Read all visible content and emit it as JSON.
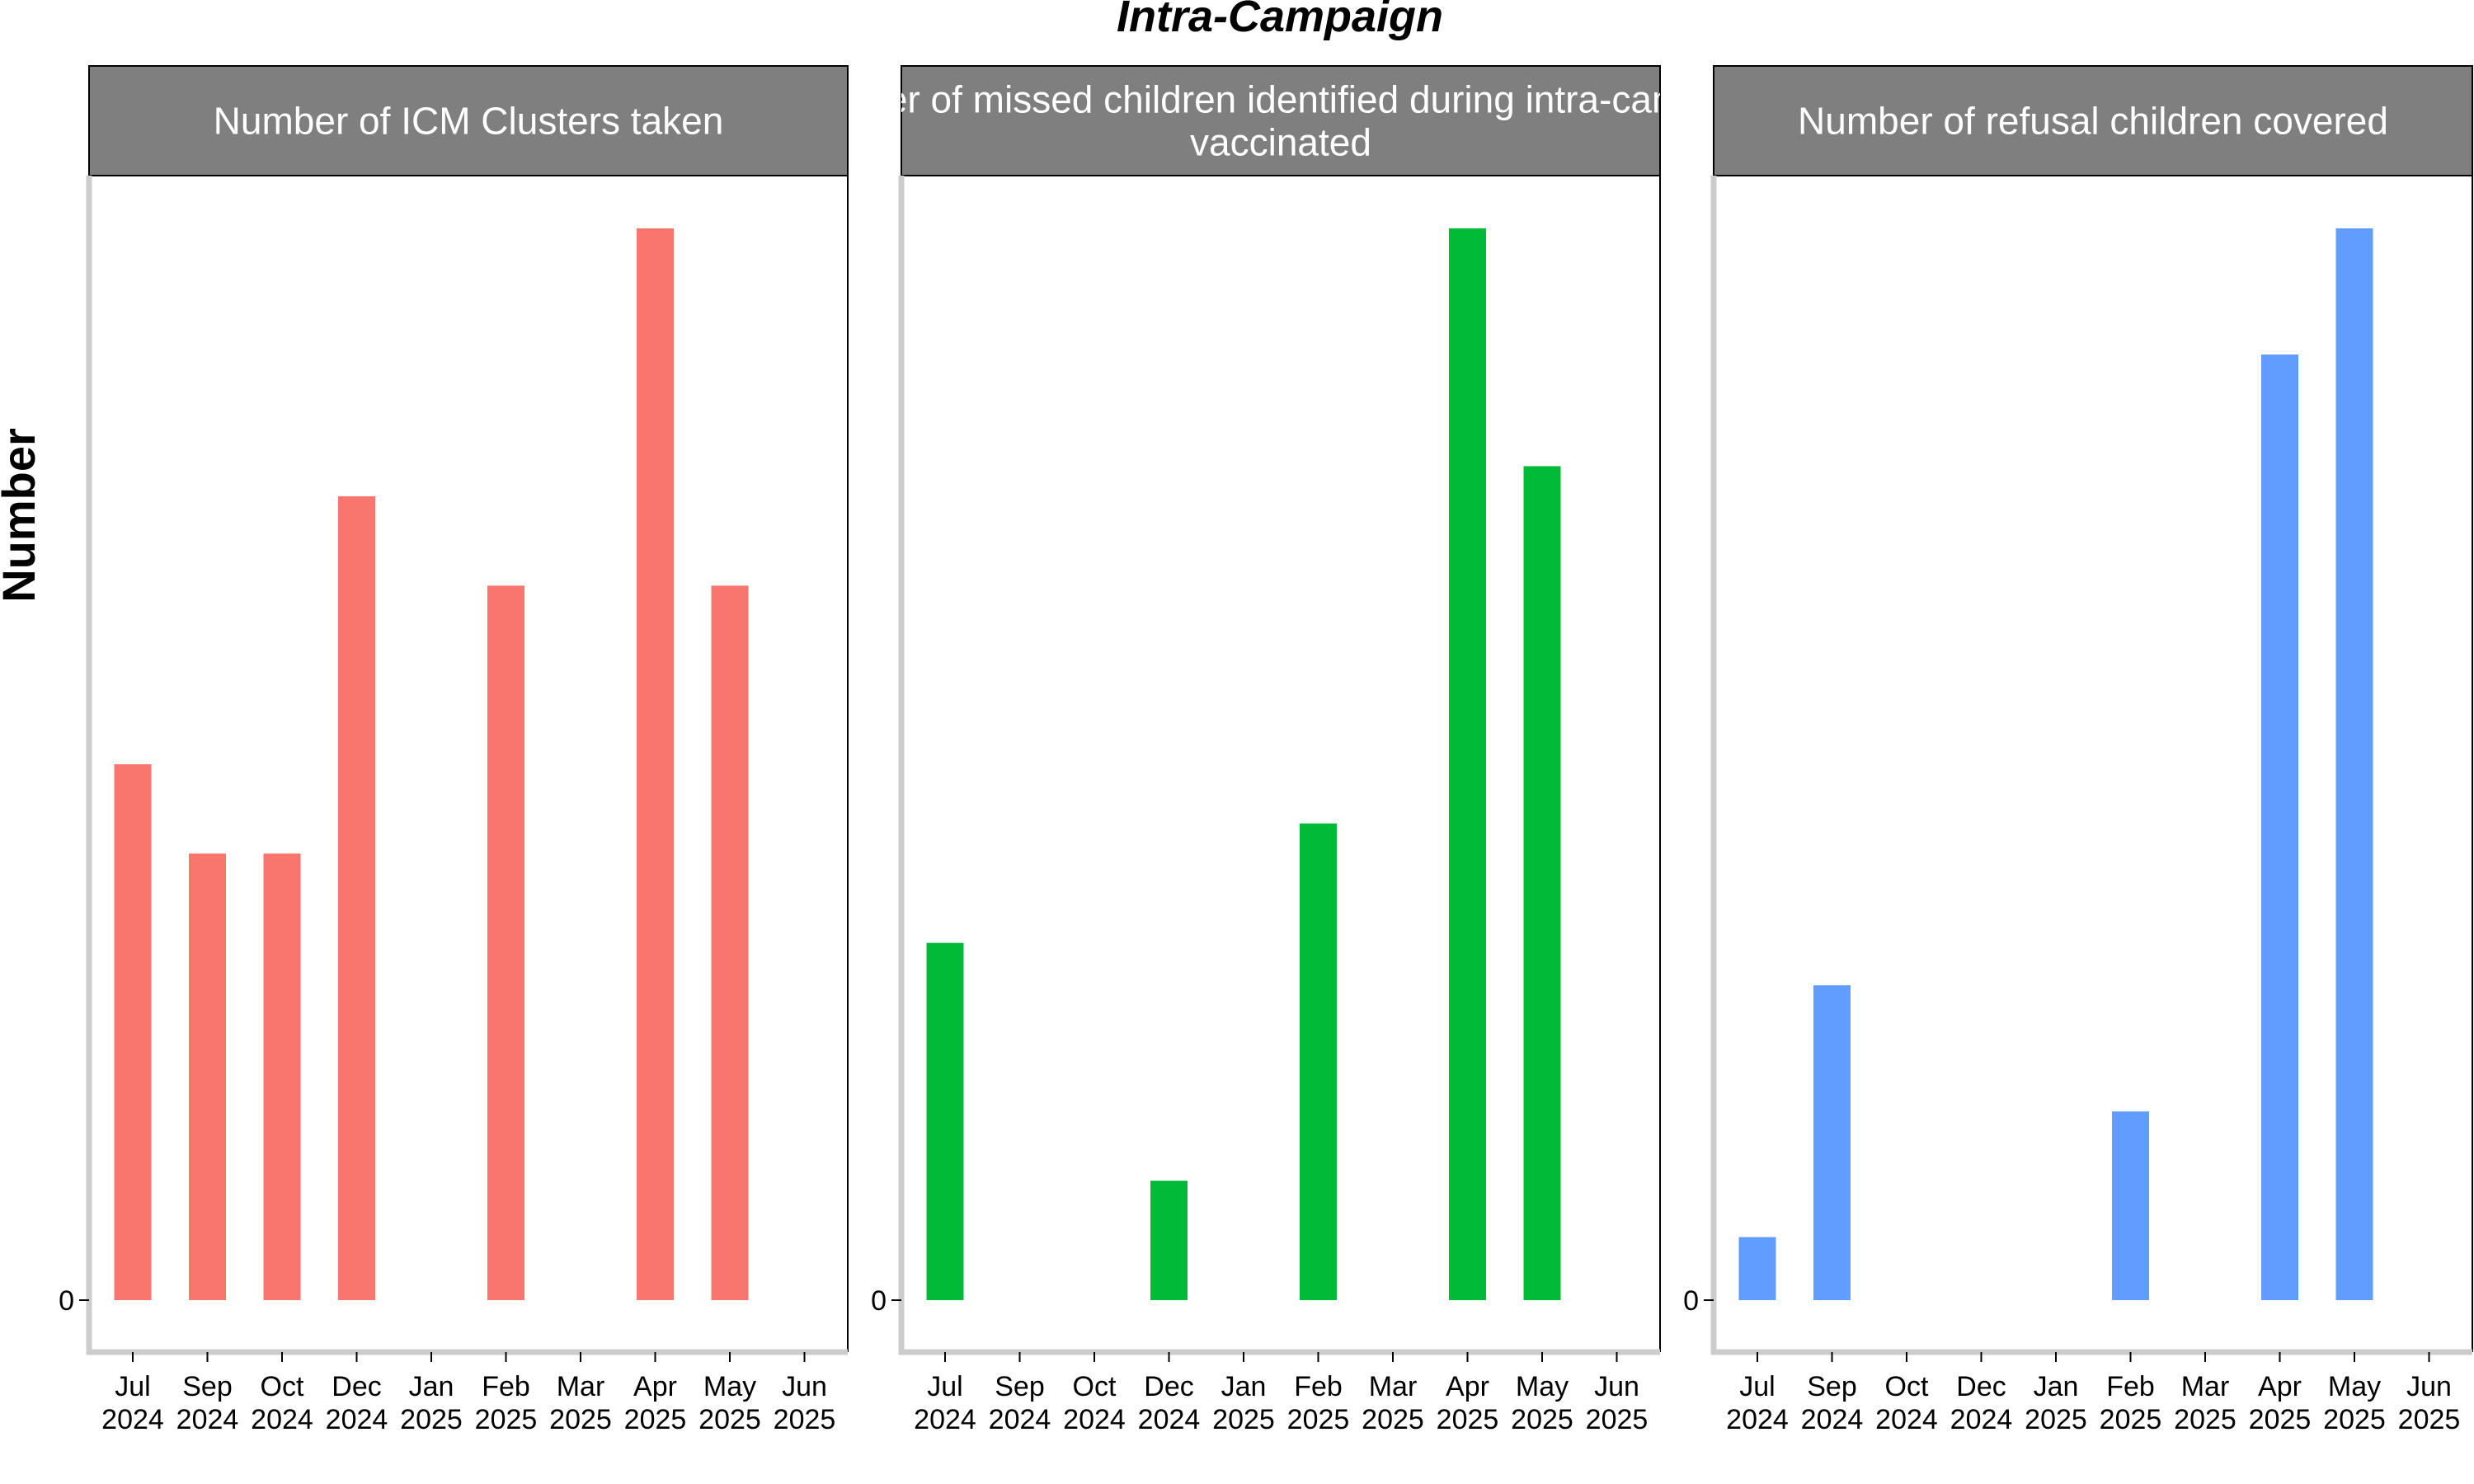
{
  "chart_data": {
    "type": "bar",
    "title": "Intra-Campaign",
    "xlabel": "",
    "ylabel": "Number",
    "y_tick_labels": [
      "0"
    ],
    "x_tick_labels": [
      {
        "month": "Jul",
        "year": "2024"
      },
      {
        "month": "Sep",
        "year": "2024"
      },
      {
        "month": "Oct",
        "year": "2024"
      },
      {
        "month": "Dec",
        "year": "2024"
      },
      {
        "month": "Jan",
        "year": "2025"
      },
      {
        "month": "Feb",
        "year": "2025"
      },
      {
        "month": "Mar",
        "year": "2025"
      },
      {
        "month": "Apr",
        "year": "2025"
      },
      {
        "month": "May",
        "year": "2025"
      },
      {
        "month": "Jun",
        "year": "2025"
      }
    ],
    "grid": false,
    "legend": "none",
    "facets": [
      {
        "strip_lines": [
          "Number of ICM Clusters taken"
        ],
        "color": "#F8766D",
        "ylim": [
          -0.045,
          0.96
        ],
        "bars": [
          {
            "x": "Jul 2024",
            "value": 0.48
          },
          {
            "x": "Sep 2024",
            "value": 0.4
          },
          {
            "x": "Oct 2024",
            "value": 0.4
          },
          {
            "x": "Dec 2024",
            "value": 0.72
          },
          {
            "x": "Feb 2025",
            "value": 0.64
          },
          {
            "x": "Apr 2025",
            "value": 0.96
          },
          {
            "x": "May 2025",
            "value": 0.64
          }
        ]
      },
      {
        "strip_lines": [
          "Number of missed children identified during intra-campaign",
          "vaccinated"
        ],
        "color": "#00BA38",
        "ylim": [
          -0.045,
          0.96
        ],
        "bars": [
          {
            "x": "Jul 2024",
            "value": 0.32
          },
          {
            "x": "Dec 2024",
            "value": 0.107
          },
          {
            "x": "Feb 2025",
            "value": 0.427
          },
          {
            "x": "Apr 2025",
            "value": 0.96
          },
          {
            "x": "May 2025",
            "value": 0.747
          }
        ]
      },
      {
        "strip_lines": [
          "Number of refusal children covered"
        ],
        "color": "#619CFF",
        "ylim": [
          -0.045,
          0.96
        ],
        "bars": [
          {
            "x": "Jul 2024",
            "value": 0.0565
          },
          {
            "x": "Sep 2024",
            "value": 0.282
          },
          {
            "x": "Feb 2025",
            "value": 0.169
          },
          {
            "x": "Apr 2025",
            "value": 0.847
          },
          {
            "x": "May 2025",
            "value": 0.96
          }
        ]
      }
    ]
  }
}
